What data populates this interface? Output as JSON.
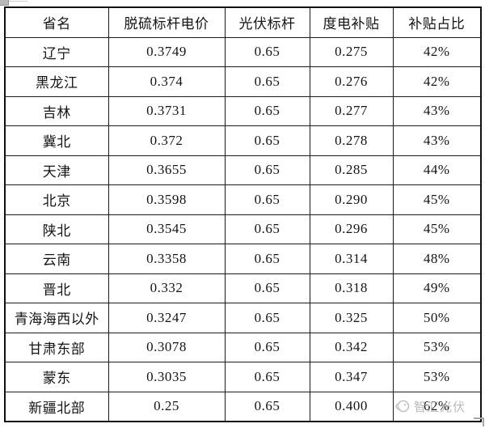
{
  "table": {
    "headers": [
      "省名",
      "脱硫标杆电价",
      "光伏标杆",
      "度电补贴",
      "补贴占比"
    ],
    "rows": [
      [
        "辽宁",
        "0.3749",
        "0.65",
        "0.275",
        "42%"
      ],
      [
        "黑龙江",
        "0.374",
        "0.65",
        "0.276",
        "42%"
      ],
      [
        "吉林",
        "0.3731",
        "0.65",
        "0.277",
        "43%"
      ],
      [
        "冀北",
        "0.372",
        "0.65",
        "0.278",
        "43%"
      ],
      [
        "天津",
        "0.3655",
        "0.65",
        "0.285",
        "44%"
      ],
      [
        "北京",
        "0.3598",
        "0.65",
        "0.290",
        "45%"
      ],
      [
        "陕北",
        "0.3545",
        "0.65",
        "0.296",
        "45%"
      ],
      [
        "云南",
        "0.3358",
        "0.65",
        "0.314",
        "48%"
      ],
      [
        "晋北",
        "0.332",
        "0.65",
        "0.318",
        "49%"
      ],
      [
        "青海海西以外",
        "0.3247",
        "0.65",
        "0.325",
        "50%"
      ],
      [
        "甘肃东部",
        "0.3078",
        "0.65",
        "0.342",
        "53%"
      ],
      [
        "蒙东",
        "0.3035",
        "0.65",
        "0.347",
        "53%"
      ],
      [
        "新疆北部",
        "0.25",
        "0.65",
        "0.400",
        "62%"
      ]
    ]
  },
  "watermark": {
    "text": "智汇光伏",
    "color": "#b2b2b2",
    "logo_icon": "sun-swirl-logo-icon"
  },
  "colors": {
    "border": "#1a1a1a",
    "text": "#141414",
    "background": "#ffffff",
    "watermark": "#b2b2b2"
  }
}
